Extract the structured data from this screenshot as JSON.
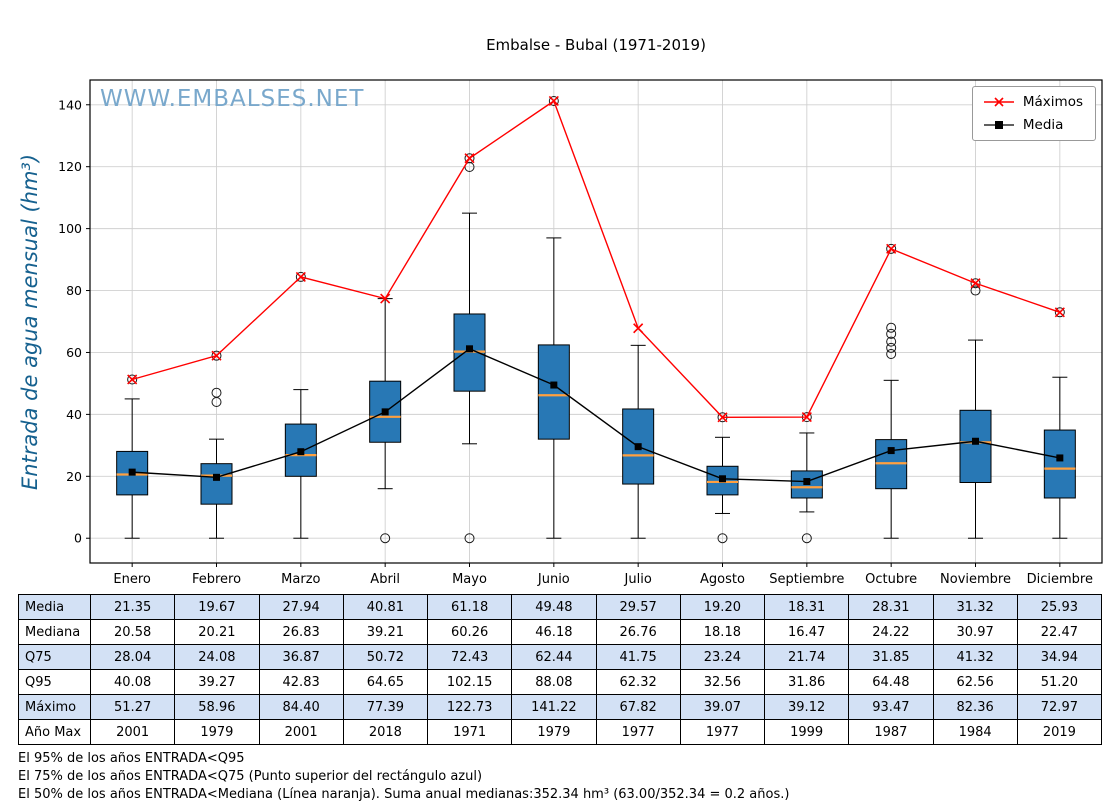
{
  "title": "Embalse - Bubal (1971-2019)",
  "watermark": "WWW.EMBALSES.NET",
  "ylabel": "Entrada de agua mensual (hm³)",
  "legend": {
    "items": [
      {
        "label": "Máximos",
        "color": "#ff0000",
        "marker": "x"
      },
      {
        "label": "Media",
        "color": "#000000",
        "marker": "square"
      }
    ]
  },
  "chart_data": {
    "type": "boxplot+lines",
    "title": "Embalse - Bubal (1971-2019)",
    "ylabel": "Entrada de agua mensual (hm³)",
    "categories": [
      "Enero",
      "Febrero",
      "Marzo",
      "Abril",
      "Mayo",
      "Junio",
      "Julio",
      "Agosto",
      "Septiembre",
      "Octubre",
      "Noviembre",
      "Diciembre"
    ],
    "yticks": [
      0,
      20,
      40,
      60,
      80,
      100,
      120,
      140
    ],
    "ylim": [
      -8,
      148
    ],
    "grid": true,
    "legend_position": "upper right",
    "colors": {
      "box": "#2878b5",
      "median": "#ffa040",
      "maximos_line": "#ff0000",
      "media_line": "#000000",
      "grid": "#d0d0d0",
      "watermark": "#79a8cc",
      "ylabel": "#16618f"
    },
    "series": [
      {
        "name": "Máximos",
        "color": "#ff0000",
        "marker": "x",
        "values": [
          51.27,
          58.96,
          84.4,
          77.39,
          122.73,
          141.22,
          67.82,
          39.07,
          39.12,
          93.47,
          82.36,
          72.97
        ]
      },
      {
        "name": "Media",
        "color": "#000000",
        "marker": "square",
        "values": [
          21.35,
          19.67,
          27.94,
          40.81,
          61.18,
          49.48,
          29.57,
          19.2,
          18.31,
          28.31,
          31.32,
          25.93
        ]
      }
    ],
    "boxes": [
      {
        "month": "Enero",
        "q1": 14.0,
        "med": 20.58,
        "q3": 28.04,
        "lo": 0,
        "hi": 45.0,
        "fliers": [
          51.27
        ]
      },
      {
        "month": "Febrero",
        "q1": 11.0,
        "med": 20.21,
        "q3": 24.08,
        "lo": 0,
        "hi": 32.0,
        "fliers": [
          44.0,
          47.0,
          58.96
        ]
      },
      {
        "month": "Marzo",
        "q1": 20.0,
        "med": 26.83,
        "q3": 36.87,
        "lo": 0,
        "hi": 48.0,
        "fliers": [
          84.4
        ]
      },
      {
        "month": "Abril",
        "q1": 31.0,
        "med": 39.21,
        "q3": 50.72,
        "lo": 16.0,
        "hi": 77.39,
        "fliers": [
          0
        ]
      },
      {
        "month": "Mayo",
        "q1": 47.5,
        "med": 60.26,
        "q3": 72.43,
        "lo": 30.5,
        "hi": 105.0,
        "fliers": [
          0,
          119.9,
          122.73
        ]
      },
      {
        "month": "Junio",
        "q1": 32.0,
        "med": 46.18,
        "q3": 62.44,
        "lo": 0,
        "hi": 97.0,
        "fliers": [
          141.22
        ]
      },
      {
        "month": "Julio",
        "q1": 17.5,
        "med": 26.76,
        "q3": 41.75,
        "lo": 0,
        "hi": 62.3,
        "fliers": []
      },
      {
        "month": "Agosto",
        "q1": 14.0,
        "med": 18.18,
        "q3": 23.24,
        "lo": 8.0,
        "hi": 32.6,
        "fliers": [
          0,
          39.07
        ]
      },
      {
        "month": "Septiembre",
        "q1": 13.0,
        "med": 16.47,
        "q3": 21.74,
        "lo": 8.5,
        "hi": 34.0,
        "fliers": [
          0,
          39.12
        ]
      },
      {
        "month": "Octubre",
        "q1": 16.0,
        "med": 24.22,
        "q3": 31.85,
        "lo": 0,
        "hi": 51.0,
        "fliers": [
          59.5,
          61.5,
          63.5,
          66.0,
          68.0,
          93.47
        ]
      },
      {
        "month": "Noviembre",
        "q1": 18.0,
        "med": 30.97,
        "q3": 41.32,
        "lo": 0,
        "hi": 64.0,
        "fliers": [
          80.0,
          82.36
        ]
      },
      {
        "month": "Diciembre",
        "q1": 13.0,
        "med": 22.47,
        "q3": 34.94,
        "lo": 0,
        "hi": 52.0,
        "fliers": [
          72.97
        ]
      }
    ]
  },
  "table": {
    "rows": [
      {
        "label": "Media",
        "values": [
          "21.35",
          "19.67",
          "27.94",
          "40.81",
          "61.18",
          "49.48",
          "29.57",
          "19.20",
          "18.31",
          "28.31",
          "31.32",
          "25.93"
        ]
      },
      {
        "label": "Mediana",
        "values": [
          "20.58",
          "20.21",
          "26.83",
          "39.21",
          "60.26",
          "46.18",
          "26.76",
          "18.18",
          "16.47",
          "24.22",
          "30.97",
          "22.47"
        ]
      },
      {
        "label": "Q75",
        "values": [
          "28.04",
          "24.08",
          "36.87",
          "50.72",
          "72.43",
          "62.44",
          "41.75",
          "23.24",
          "21.74",
          "31.85",
          "41.32",
          "34.94"
        ]
      },
      {
        "label": "Q95",
        "values": [
          "40.08",
          "39.27",
          "42.83",
          "64.65",
          "102.15",
          "88.08",
          "62.32",
          "32.56",
          "31.86",
          "64.48",
          "62.56",
          "51.20"
        ]
      },
      {
        "label": "Máximo",
        "values": [
          "51.27",
          "58.96",
          "84.40",
          "77.39",
          "122.73",
          "141.22",
          "67.82",
          "39.07",
          "39.12",
          "93.47",
          "82.36",
          "72.97"
        ]
      },
      {
        "label": "Año Max",
        "values": [
          "2001",
          "1979",
          "2001",
          "2018",
          "1971",
          "1979",
          "1977",
          "1977",
          "1999",
          "1987",
          "1984",
          "2019"
        ]
      }
    ]
  },
  "footnotes": [
    "El 95% de los años ENTRADA<Q95",
    "El 75% de los años ENTRADA<Q75 (Punto superior del rectángulo azul)",
    "El 50% de los años ENTRADA<Mediana (Línea naranja). Suma anual medianas:352.34 hm³ (63.00/352.34 = 0.2 años.)"
  ]
}
